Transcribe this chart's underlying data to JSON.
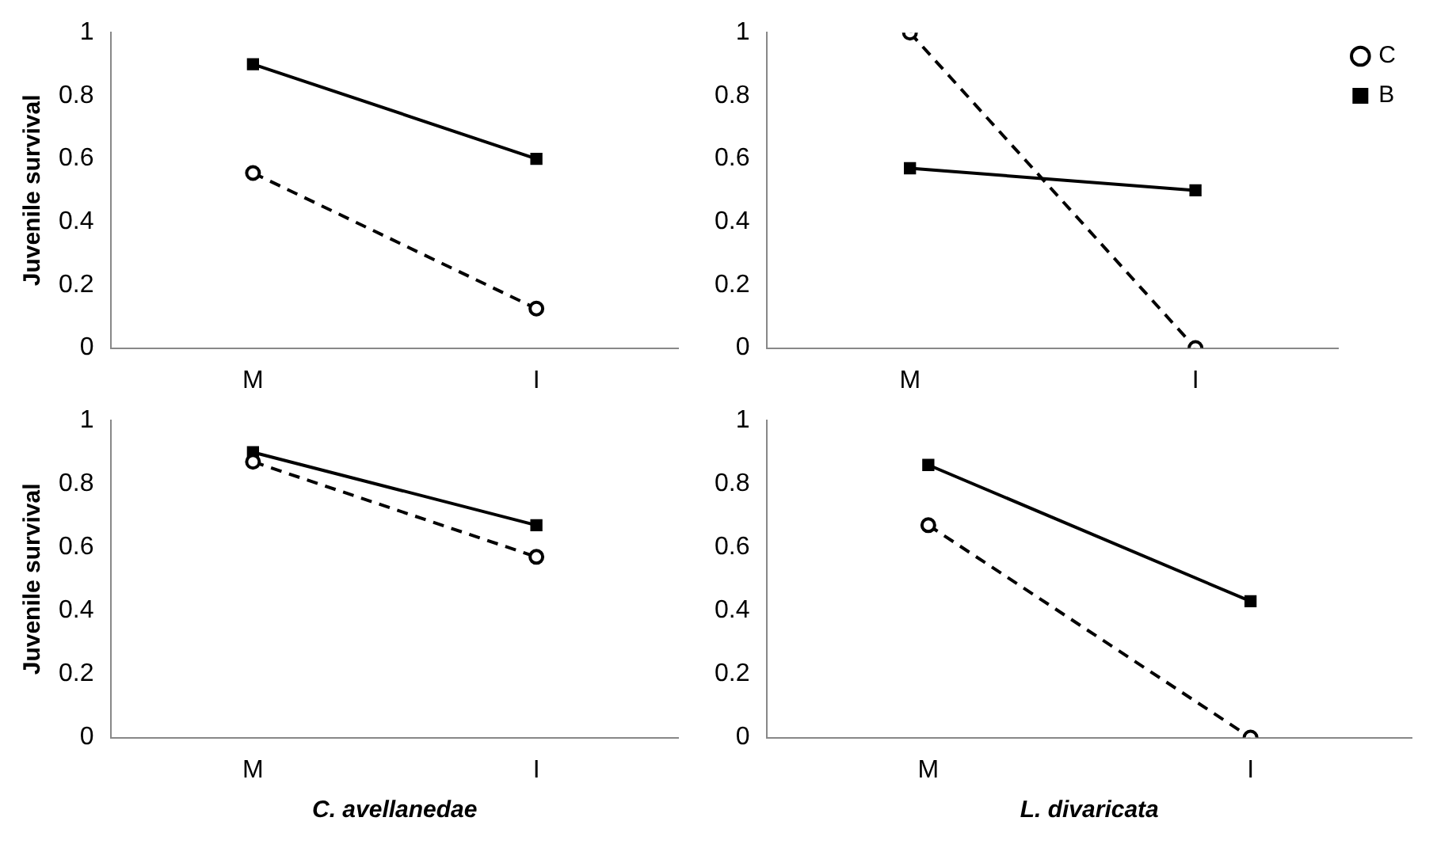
{
  "chart_data": [
    {
      "type": "line",
      "ylabel": "Juvenile survival",
      "categories": [
        "M",
        "I"
      ],
      "ylim": [
        0,
        1
      ],
      "yticks": [
        0,
        0.2,
        0.4,
        0.6,
        0.8,
        1
      ],
      "grid": false,
      "legend": false,
      "series": [
        {
          "color": "#000000",
          "values": [
            0.555,
            0.125
          ],
          "line_style": "dashed",
          "marker": "circle"
        },
        {
          "color": "#000000",
          "values": [
            0.9,
            0.6
          ],
          "line_style": "solid",
          "marker": "square"
        }
      ]
    },
    {
      "type": "line",
      "categories": [
        "M",
        "I"
      ],
      "ylim": [
        0,
        1
      ],
      "yticks": [
        0,
        0.2,
        0.4,
        0.6,
        0.8,
        1
      ],
      "grid": false,
      "legend": "top right",
      "series": [
        {
          "name": "C",
          "color": "#000000",
          "values": [
            1,
            0
          ],
          "line_style": "dashed",
          "marker": "circle"
        },
        {
          "name": "B",
          "color": "#000000",
          "values": [
            0.57,
            0.5
          ],
          "line_style": "solid",
          "marker": "square"
        }
      ]
    },
    {
      "type": "line",
      "ylabel": "Juvenile survival",
      "xlabel": "C. avellanedae",
      "categories": [
        "M",
        "I"
      ],
      "ylim": [
        0,
        1
      ],
      "yticks": [
        0,
        0.2,
        0.4,
        0.6,
        0.8,
        1
      ],
      "grid": false,
      "legend": false,
      "series": [
        {
          "color": "#000000",
          "values": [
            0.87,
            0.57
          ],
          "line_style": "dashed",
          "marker": "circle"
        },
        {
          "color": "#000000",
          "values": [
            0.9,
            0.67
          ],
          "line_style": "solid",
          "marker": "square"
        }
      ]
    },
    {
      "type": "line",
      "xlabel": "L. divaricata",
      "categories": [
        "M",
        "I"
      ],
      "ylim": [
        0,
        1
      ],
      "yticks": [
        0,
        0.2,
        0.4,
        0.6,
        0.8,
        1
      ],
      "grid": false,
      "legend": false,
      "series": [
        {
          "color": "#000000",
          "values": [
            0.67,
            0
          ],
          "line_style": "dashed",
          "marker": "circle"
        },
        {
          "color": "#000000",
          "values": [
            0.86,
            0.43
          ],
          "line_style": "solid",
          "marker": "square"
        }
      ]
    }
  ]
}
